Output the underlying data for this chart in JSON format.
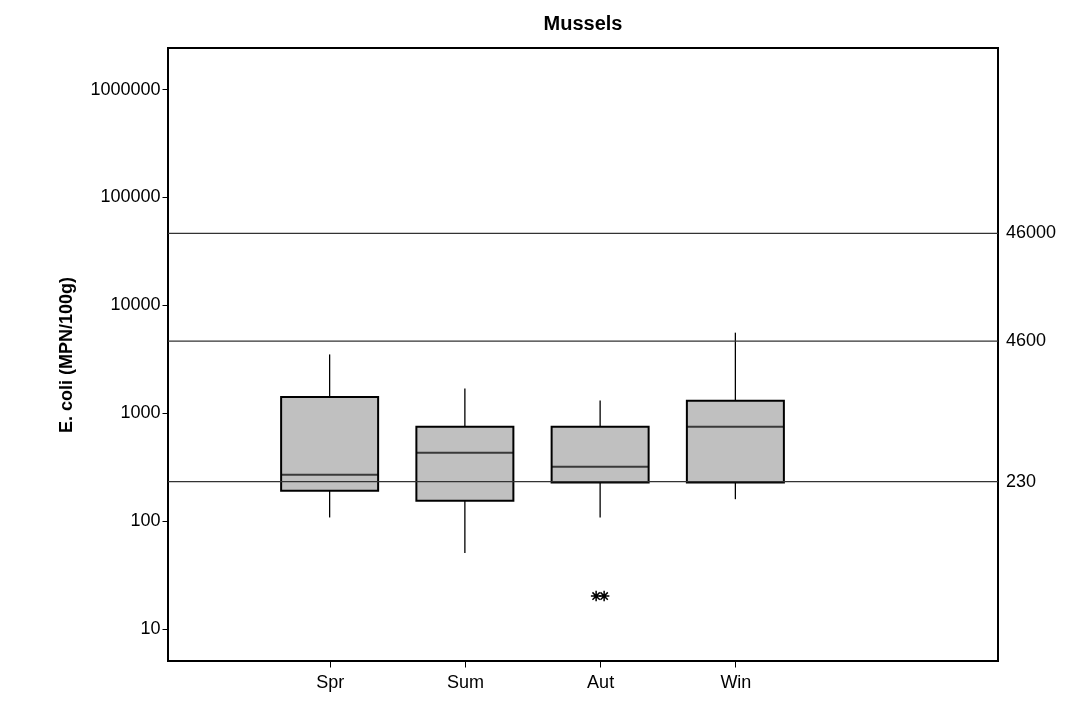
{
  "chart_data": {
    "type": "box",
    "title": "Mussels",
    "ylabel": "E. coli (MPN/100g)",
    "categories": [
      "Spr",
      "Sum",
      "Aut",
      "Win"
    ],
    "boxes": [
      {
        "low": 107,
        "q1": 189,
        "median": 266,
        "q3": 1400,
        "high": 3470
      },
      {
        "low": 50,
        "q1": 153,
        "median": 425,
        "q3": 740,
        "high": 1680
      },
      {
        "low": 107,
        "q1": 226,
        "median": 315,
        "q3": 740,
        "high": 1300,
        "outliers": [
          20,
          20
        ]
      },
      {
        "low": 158,
        "q1": 226,
        "median": 740,
        "q3": 1290,
        "high": 5520
      }
    ],
    "color": "#c0c0c0",
    "log": true,
    "grid": false,
    "ylim": [
      5,
      2400000
    ],
    "yticks": [
      10,
      100,
      1000,
      10000,
      100000,
      1000000
    ],
    "ref_lines": [
      {
        "axis": "y",
        "value": 46000,
        "label": "46000"
      },
      {
        "axis": "y",
        "value": 4600,
        "label": "4600"
      },
      {
        "axis": "y",
        "value": 230,
        "label": "230"
      }
    ]
  }
}
